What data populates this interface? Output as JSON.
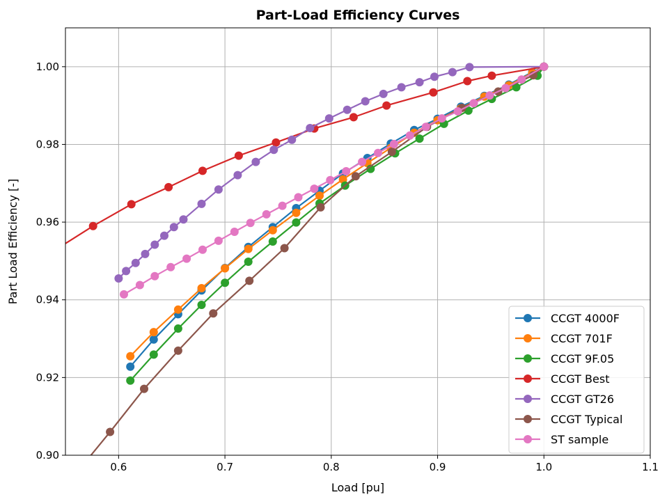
{
  "chart_data": {
    "type": "line",
    "title": "Part-Load Efficiency Curves",
    "xlabel": "Load [pu]",
    "ylabel": "Part Load Efficiency [-]",
    "xlim": [
      0.55,
      1.1
    ],
    "ylim": [
      0.9,
      1.01
    ],
    "xticks": [
      0.6,
      0.7,
      0.8,
      0.9,
      1.0,
      1.1
    ],
    "xtick_labels": [
      "0.6",
      "0.7",
      "0.8",
      "0.9",
      "1.0",
      "1.1"
    ],
    "yticks": [
      0.9,
      0.92,
      0.94,
      0.96,
      0.98,
      1.0
    ],
    "ytick_labels": [
      "0.90",
      "0.92",
      "0.94",
      "0.96",
      "0.98",
      "1.00"
    ],
    "grid": true,
    "legend_position": "bottom-right",
    "series": [
      {
        "name": "CCGT 4000F",
        "color": "#1f77b4",
        "x": [
          0.611,
          0.633,
          0.656,
          0.678,
          0.7,
          0.722,
          0.745,
          0.767,
          0.789,
          0.811,
          0.834,
          0.856,
          0.878,
          0.9,
          0.922,
          0.944,
          0.967,
          0.989,
          1.0
        ],
        "y": [
          0.9228,
          0.9298,
          0.9363,
          0.9424,
          0.9482,
          0.9536,
          0.9587,
          0.9636,
          0.9681,
          0.9725,
          0.9765,
          0.9802,
          0.9837,
          0.9866,
          0.9897,
          0.9925,
          0.9954,
          0.9986,
          1.0
        ],
        "curve_x": [
          0.611,
          0.633,
          0.656,
          0.678,
          0.7,
          0.722,
          0.745,
          0.767,
          0.789,
          0.811,
          0.834,
          0.856,
          0.878,
          0.9,
          0.922,
          0.944,
          0.967,
          0.989,
          1.0
        ],
        "curve_y": [
          0.9228,
          0.9298,
          0.9363,
          0.9424,
          0.9482,
          0.9536,
          0.9587,
          0.9636,
          0.9681,
          0.9725,
          0.9765,
          0.9802,
          0.9837,
          0.9866,
          0.9897,
          0.9925,
          0.9954,
          0.9986,
          1.0
        ]
      },
      {
        "name": "CCGT 701F",
        "color": "#ff7f0e",
        "x": [
          0.611,
          0.633,
          0.656,
          0.678,
          0.7,
          0.722,
          0.745,
          0.767,
          0.789,
          0.811,
          0.834,
          0.856,
          0.878,
          0.9,
          0.922,
          0.944,
          0.967,
          0.989,
          1.0
        ],
        "y": [
          0.9255,
          0.9317,
          0.9375,
          0.943,
          0.9481,
          0.9531,
          0.9579,
          0.9624,
          0.9668,
          0.971,
          0.9752,
          0.9791,
          0.983,
          0.9862,
          0.9893,
          0.9923,
          0.9952,
          0.9984,
          1.0
        ],
        "curve_x": [
          0.611,
          0.633,
          0.656,
          0.678,
          0.7,
          0.722,
          0.745,
          0.767,
          0.789,
          0.811,
          0.834,
          0.856,
          0.878,
          0.9,
          0.922,
          0.944,
          0.967,
          0.989,
          1.0
        ],
        "curve_y": [
          0.9255,
          0.9317,
          0.9375,
          0.943,
          0.9481,
          0.9531,
          0.9579,
          0.9624,
          0.9668,
          0.971,
          0.9752,
          0.9791,
          0.983,
          0.9862,
          0.9893,
          0.9923,
          0.9952,
          0.9984,
          1.0
        ]
      },
      {
        "name": "CCGT 9F.05",
        "color": "#2ca02c",
        "x": [
          0.611,
          0.633,
          0.656,
          0.678,
          0.7,
          0.722,
          0.745,
          0.767,
          0.789,
          0.813,
          0.837,
          0.86,
          0.883,
          0.906,
          0.929,
          0.951,
          0.974,
          0.994,
          1.0
        ],
        "y": [
          0.9192,
          0.9259,
          0.9326,
          0.9387,
          0.9444,
          0.9498,
          0.955,
          0.9599,
          0.9648,
          0.9694,
          0.9737,
          0.9777,
          0.9815,
          0.9853,
          0.9887,
          0.9917,
          0.9947,
          0.9977,
          1.0
        ],
        "curve_x": [
          0.611,
          0.633,
          0.656,
          0.678,
          0.7,
          0.722,
          0.745,
          0.767,
          0.789,
          0.813,
          0.837,
          0.86,
          0.883,
          0.906,
          0.929,
          0.951,
          0.974,
          0.994,
          1.0
        ],
        "curve_y": [
          0.9192,
          0.9259,
          0.9326,
          0.9387,
          0.9444,
          0.9498,
          0.955,
          0.9599,
          0.9648,
          0.9694,
          0.9737,
          0.9777,
          0.9815,
          0.9853,
          0.9887,
          0.9917,
          0.9947,
          0.9977,
          1.0
        ]
      },
      {
        "name": "CCGT Best",
        "color": "#d62728",
        "x": [
          0.576,
          0.612,
          0.647,
          0.679,
          0.713,
          0.748,
          0.784,
          0.821,
          0.852,
          0.896,
          0.928,
          0.951,
          1.0
        ],
        "y": [
          0.959,
          0.9646,
          0.969,
          0.9732,
          0.9771,
          0.9805,
          0.9841,
          0.987,
          0.99,
          0.9934,
          0.9963,
          0.9977,
          1.0
        ],
        "curve_x": [
          0.55,
          0.576,
          0.612,
          0.647,
          0.679,
          0.713,
          0.748,
          0.784,
          0.821,
          0.852,
          0.896,
          0.928,
          0.951,
          1.0
        ],
        "curve_y": [
          0.9545,
          0.959,
          0.9646,
          0.969,
          0.9732,
          0.9771,
          0.9805,
          0.9841,
          0.987,
          0.99,
          0.9934,
          0.9963,
          0.9977,
          1.0
        ]
      },
      {
        "name": "CCGT GT26",
        "color": "#9467bd",
        "x": [
          0.6,
          0.607,
          0.616,
          0.625,
          0.634,
          0.643,
          0.652,
          0.661,
          0.678,
          0.694,
          0.712,
          0.729,
          0.746,
          0.763,
          0.78,
          0.798,
          0.815,
          0.832,
          0.849,
          0.866,
          0.883,
          0.897,
          0.914,
          0.93,
          1.0
        ],
        "y": [
          0.9455,
          0.9474,
          0.9495,
          0.9518,
          0.9542,
          0.9565,
          0.9587,
          0.9607,
          0.9647,
          0.9684,
          0.9721,
          0.9755,
          0.9786,
          0.9812,
          0.9842,
          0.9867,
          0.9889,
          0.9911,
          0.993,
          0.9947,
          0.996,
          0.9974,
          0.9986,
          0.9999,
          1.0
        ],
        "curve_x": [
          0.6,
          0.607,
          0.616,
          0.625,
          0.634,
          0.643,
          0.652,
          0.661,
          0.678,
          0.694,
          0.712,
          0.729,
          0.746,
          0.763,
          0.78,
          0.798,
          0.815,
          0.832,
          0.849,
          0.866,
          0.883,
          0.897,
          0.914,
          0.93,
          1.0
        ],
        "curve_y": [
          0.9455,
          0.9474,
          0.9495,
          0.9518,
          0.9542,
          0.9565,
          0.9587,
          0.9607,
          0.9647,
          0.9684,
          0.9721,
          0.9755,
          0.9786,
          0.9812,
          0.9842,
          0.9867,
          0.9889,
          0.9911,
          0.993,
          0.9947,
          0.996,
          0.9974,
          0.9986,
          0.9999,
          1.0
        ]
      },
      {
        "name": "CCGT Typical",
        "color": "#8c564b",
        "x": [
          0.592,
          0.624,
          0.656,
          0.689,
          0.723,
          0.756,
          0.79,
          0.823,
          0.857,
          0.89,
          0.923,
          0.957,
          0.99,
          1.0
        ],
        "y": [
          0.906,
          0.9171,
          0.9269,
          0.9365,
          0.9449,
          0.9533,
          0.9638,
          0.9718,
          0.9781,
          0.9845,
          0.9894,
          0.9936,
          0.9978,
          1.0
        ],
        "curve_x": [
          0.55,
          0.592,
          0.624,
          0.656,
          0.689,
          0.723,
          0.756,
          0.79,
          0.823,
          0.857,
          0.89,
          0.923,
          0.957,
          0.99,
          1.0
        ],
        "curve_y": [
          0.892,
          0.906,
          0.9171,
          0.9269,
          0.9365,
          0.9449,
          0.9533,
          0.9638,
          0.9718,
          0.9781,
          0.9845,
          0.9894,
          0.9936,
          0.9978,
          1.0
        ]
      },
      {
        "name": "ST sample",
        "color": "#e377c2",
        "x": [
          0.605,
          0.62,
          0.634,
          0.649,
          0.664,
          0.679,
          0.694,
          0.709,
          0.724,
          0.739,
          0.754,
          0.769,
          0.784,
          0.799,
          0.814,
          0.829,
          0.844,
          0.859,
          0.874,
          0.889,
          0.904,
          0.919,
          0.934,
          0.949,
          0.964,
          0.979,
          1.0
        ],
        "y": [
          0.9414,
          0.9438,
          0.9461,
          0.9484,
          0.9506,
          0.9529,
          0.9552,
          0.9575,
          0.9598,
          0.962,
          0.9642,
          0.9664,
          0.9686,
          0.9708,
          0.9731,
          0.9755,
          0.9778,
          0.9801,
          0.9823,
          0.9845,
          0.9867,
          0.9885,
          0.9906,
          0.9926,
          0.9945,
          0.9967,
          1.0
        ],
        "curve_x": [
          0.605,
          0.62,
          0.634,
          0.649,
          0.664,
          0.679,
          0.694,
          0.709,
          0.724,
          0.739,
          0.754,
          0.769,
          0.784,
          0.799,
          0.814,
          0.829,
          0.844,
          0.859,
          0.874,
          0.889,
          0.904,
          0.919,
          0.934,
          0.949,
          0.964,
          0.979,
          1.0
        ],
        "curve_y": [
          0.9414,
          0.9438,
          0.9461,
          0.9484,
          0.9506,
          0.9529,
          0.9552,
          0.9575,
          0.9598,
          0.962,
          0.9642,
          0.9664,
          0.9686,
          0.9708,
          0.9731,
          0.9755,
          0.9778,
          0.9801,
          0.9823,
          0.9845,
          0.9867,
          0.9885,
          0.9906,
          0.9926,
          0.9945,
          0.9967,
          1.0
        ]
      }
    ]
  }
}
